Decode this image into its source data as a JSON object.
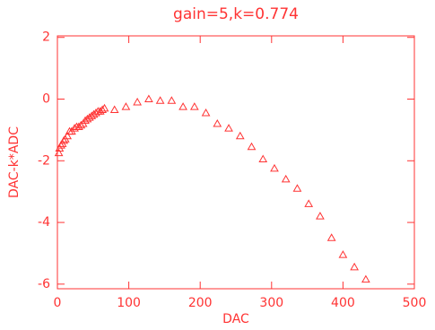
{
  "chart_data": {
    "type": "scatter",
    "title": "gain=5,k=0.774",
    "x_label": "DAC",
    "y_label": "DAC-k*ADC",
    "color": "#ff3333",
    "marker": "triangle",
    "x": [
      2,
      3,
      5,
      7,
      9,
      11,
      14,
      17,
      20,
      24,
      27,
      30,
      33,
      36,
      39,
      42,
      45,
      48,
      51,
      54,
      57,
      60,
      63,
      66,
      80,
      96,
      112,
      128,
      144,
      160,
      176,
      192,
      208,
      224,
      240,
      256,
      272,
      288,
      304,
      320,
      336,
      352,
      368,
      384,
      400,
      416,
      432
    ],
    "y": [
      -1.75,
      -1.6,
      -1.5,
      -1.45,
      -1.35,
      -1.3,
      -1.2,
      -1.05,
      -1.05,
      -0.95,
      -0.9,
      -0.9,
      -0.85,
      -0.8,
      -0.7,
      -0.65,
      -0.6,
      -0.55,
      -0.5,
      -0.45,
      -0.4,
      -0.4,
      -0.35,
      -0.3,
      -0.35,
      -0.25,
      -0.1,
      0.0,
      -0.05,
      -0.05,
      -0.25,
      -0.25,
      -0.45,
      -0.8,
      -0.95,
      -1.2,
      -1.55,
      -1.95,
      -2.25,
      -2.6,
      -2.9,
      -3.4,
      -3.8,
      -4.5,
      -5.05,
      -5.45,
      -5.85
    ],
    "xlim": [
      0,
      500
    ],
    "xticks": [
      0,
      100,
      200,
      300,
      400,
      500
    ],
    "ylim": [
      -6.15,
      2.05
    ],
    "yticks": [
      -6,
      -4,
      -2,
      0,
      2
    ]
  }
}
